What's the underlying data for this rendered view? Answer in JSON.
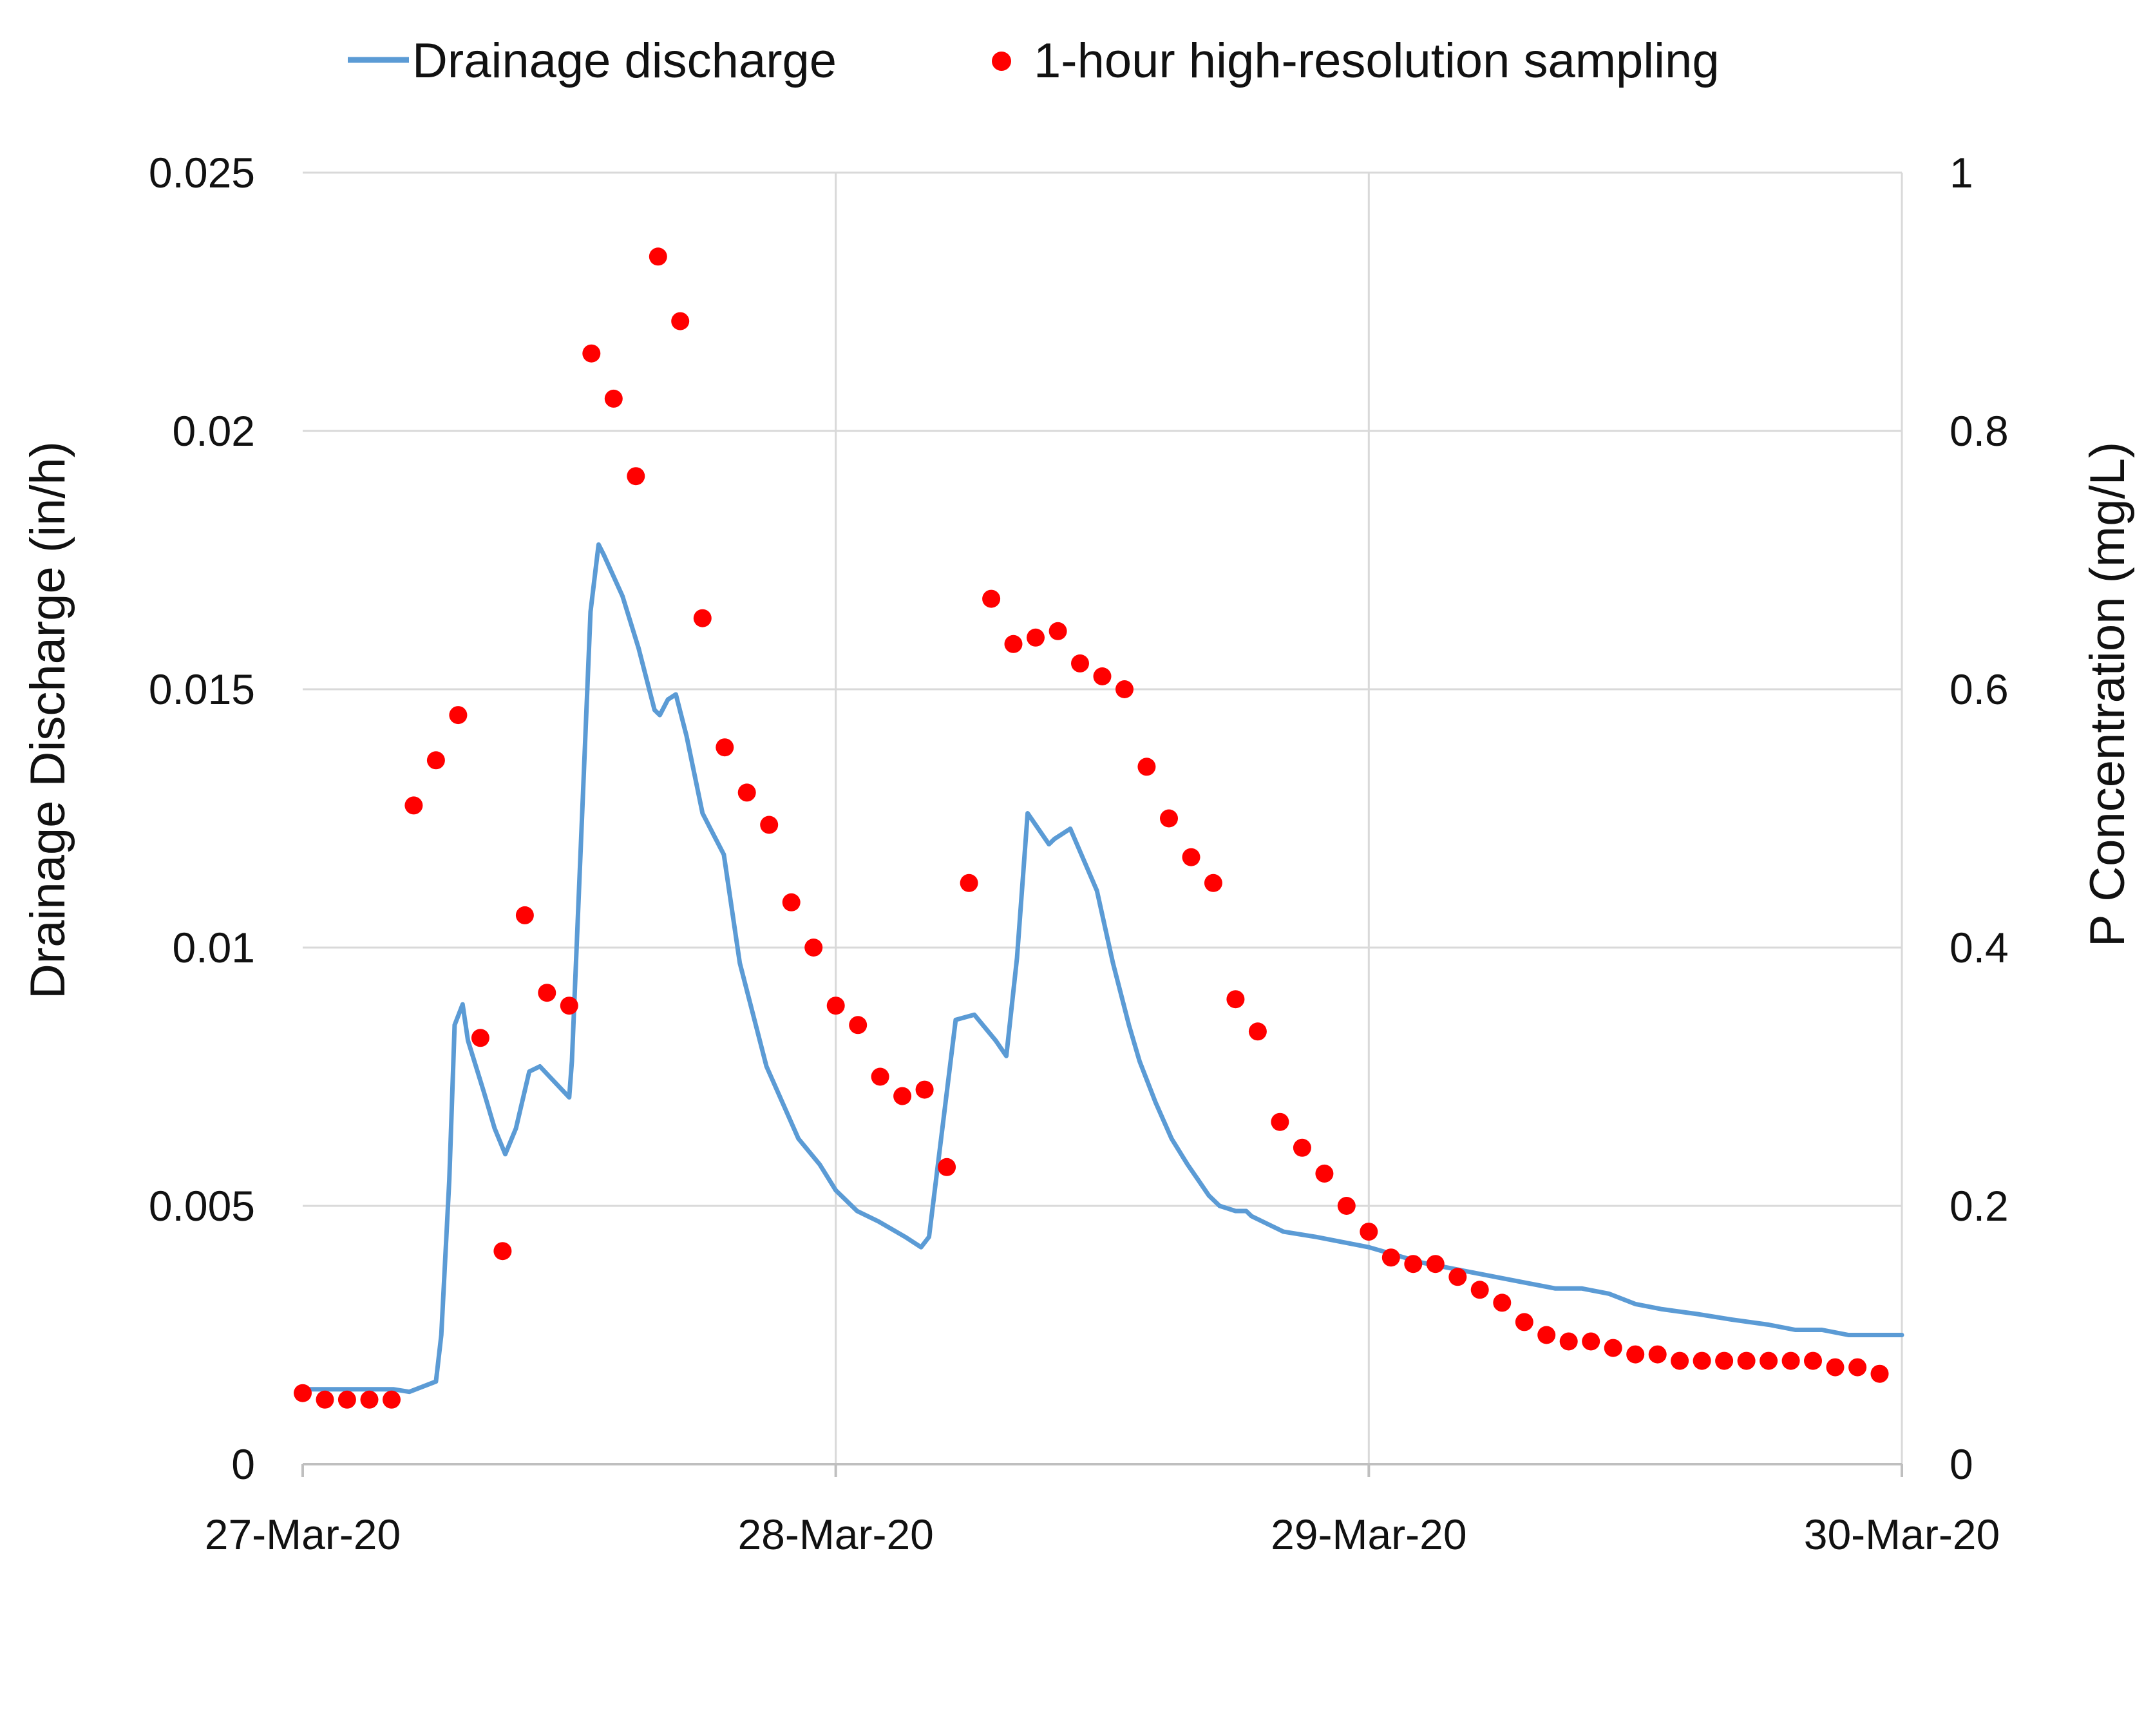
{
  "chart_data": {
    "type": "line+scatter",
    "title": "",
    "x_tick_labels": [
      "27-Mar-20",
      "28-Mar-20",
      "29-Mar-20",
      "30-Mar-20"
    ],
    "xlim_days": [
      0,
      3
    ],
    "ylabel_left": "Drainage Discharge (in/h)",
    "ylabel_right": "P Concentration (mg/L)",
    "ylim_left": [
      0,
      0.025
    ],
    "ylim_right": [
      0,
      1
    ],
    "y_ticks_left": [
      "0",
      "0.005",
      "0.01",
      "0.015",
      "0.02",
      "0.025"
    ],
    "y_ticks_right": [
      "0",
      "0.2",
      "0.4",
      "0.6",
      "0.8",
      "1"
    ],
    "grid": true,
    "legend_position": "top",
    "series": [
      {
        "name": "Drainage discharge",
        "kind": "line",
        "axis": "left",
        "color": "#5B9BD5",
        "x": [
          0,
          0.17,
          0.2,
          0.25,
          0.26,
          0.275,
          0.285,
          0.3,
          0.31,
          0.34,
          0.36,
          0.38,
          0.4,
          0.425,
          0.445,
          0.5,
          0.505,
          0.54,
          0.555,
          0.565,
          0.6,
          0.63,
          0.66,
          0.67,
          0.685,
          0.7,
          0.72,
          0.75,
          0.77,
          0.79,
          0.82,
          0.87,
          0.93,
          0.97,
          1.0,
          1.04,
          1.08,
          1.13,
          1.16,
          1.175,
          1.2,
          1.225,
          1.26,
          1.3,
          1.32,
          1.34,
          1.36,
          1.4,
          1.41,
          1.44,
          1.49,
          1.52,
          1.55,
          1.57,
          1.6,
          1.63,
          1.66,
          1.68,
          1.7,
          1.72,
          1.75,
          1.77,
          1.78,
          1.82,
          1.84,
          1.9,
          2.0,
          2.1,
          2.2,
          2.3,
          2.35,
          2.4,
          2.45,
          2.5,
          2.55,
          2.62,
          2.68,
          2.75,
          2.8,
          2.85,
          2.9,
          2.95,
          3.0
        ],
        "y": [
          0.00145,
          0.00145,
          0.0014,
          0.0016,
          0.0025,
          0.0055,
          0.0085,
          0.0089,
          0.0082,
          0.0072,
          0.0065,
          0.006,
          0.0065,
          0.0076,
          0.0077,
          0.0071,
          0.0078,
          0.0165,
          0.0178,
          0.0176,
          0.0168,
          0.0158,
          0.0146,
          0.0145,
          0.0148,
          0.0149,
          0.0141,
          0.0126,
          0.0122,
          0.0118,
          0.0097,
          0.0077,
          0.0063,
          0.0058,
          0.0053,
          0.0049,
          0.0047,
          0.0044,
          0.0042,
          0.0044,
          0.0065,
          0.0086,
          0.0087,
          0.0082,
          0.0079,
          0.0098,
          0.0126,
          0.012,
          0.0121,
          0.0123,
          0.0111,
          0.0097,
          0.0085,
          0.0078,
          0.007,
          0.0063,
          0.0058,
          0.0055,
          0.0052,
          0.005,
          0.0049,
          0.0049,
          0.0048,
          0.0046,
          0.0045,
          0.0044,
          0.0042,
          0.0039,
          0.0037,
          0.0035,
          0.0034,
          0.0034,
          0.0033,
          0.0031,
          0.003,
          0.0029,
          0.0028,
          0.0027,
          0.0026,
          0.0026,
          0.0025,
          0.0025,
          0.0025
        ]
      },
      {
        "name": "1-hour high-resolution sampling",
        "kind": "scatter",
        "axis": "right",
        "color": "#FF0000",
        "x": [
          0.0,
          0.0417,
          0.0833,
          0.125,
          0.1667,
          0.2083,
          0.25,
          0.2917,
          0.3333,
          0.375,
          0.4167,
          0.4583,
          0.5,
          0.5417,
          0.5833,
          0.625,
          0.6667,
          0.7083,
          0.75,
          0.7917,
          0.8333,
          0.875,
          0.9167,
          0.9583,
          1.0,
          1.0417,
          1.0833,
          1.125,
          1.1667,
          1.2083,
          1.25,
          1.2917,
          1.3333,
          1.375,
          1.4167,
          1.4583,
          1.5,
          1.5417,
          1.5833,
          1.625,
          1.6667,
          1.7083,
          1.75,
          1.7917,
          1.8333,
          1.875,
          1.9167,
          1.9583,
          2.0,
          2.0417,
          2.0833,
          2.125,
          2.1667,
          2.2083,
          2.25,
          2.2917,
          2.3333,
          2.375,
          2.4167,
          2.4583,
          2.5,
          2.5417,
          2.5833,
          2.625,
          2.6667,
          2.7083,
          2.75,
          2.7917,
          2.8333,
          2.875,
          2.9167,
          2.9583
        ],
        "y": [
          0.055,
          0.05,
          0.05,
          0.05,
          0.05,
          0.51,
          0.545,
          0.58,
          0.33,
          0.165,
          0.425,
          0.365,
          0.355,
          0.86,
          0.825,
          0.765,
          0.935,
          0.885,
          0.655,
          0.555,
          0.52,
          0.495,
          0.435,
          0.4,
          0.355,
          0.34,
          0.3,
          0.285,
          0.29,
          0.23,
          0.45,
          0.67,
          0.635,
          0.64,
          0.645,
          0.62,
          0.61,
          0.6,
          0.54,
          0.5,
          0.47,
          0.45,
          0.36,
          0.335,
          0.265,
          0.245,
          0.225,
          0.2,
          0.18,
          0.16,
          0.155,
          0.155,
          0.145,
          0.135,
          0.125,
          0.11,
          0.1,
          0.095,
          0.095,
          0.09,
          0.085,
          0.085,
          0.08,
          0.08,
          0.08,
          0.08,
          0.08,
          0.08,
          0.08,
          0.075,
          0.075,
          0.07
        ]
      }
    ]
  }
}
